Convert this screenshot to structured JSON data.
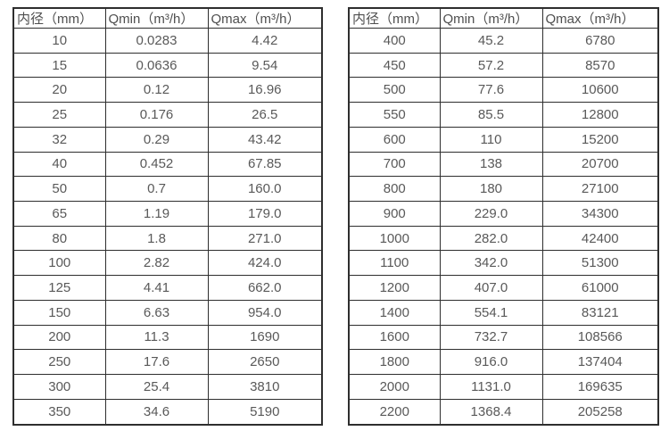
{
  "colors": {
    "background": "#ffffff",
    "border": "#2e2e2e",
    "header_text": "#4f4f4f",
    "cell_text": "#595959"
  },
  "chart_data": [
    {
      "type": "table",
      "title": "",
      "columns": [
        "内径（mm）",
        "Qmin（m³/h）",
        "Qmax（m³/h）"
      ],
      "rows": [
        [
          "10",
          "0.0283",
          "4.42"
        ],
        [
          "15",
          "0.0636",
          "9.54"
        ],
        [
          "20",
          "0.12",
          "16.96"
        ],
        [
          "25",
          "0.176",
          "26.5"
        ],
        [
          "32",
          "0.29",
          "43.42"
        ],
        [
          "40",
          "0.452",
          "67.85"
        ],
        [
          "50",
          "0.7",
          "160.0"
        ],
        [
          "65",
          "1.19",
          "179.0"
        ],
        [
          "80",
          "1.8",
          "271.0"
        ],
        [
          "100",
          "2.82",
          "424.0"
        ],
        [
          "125",
          "4.41",
          "662.0"
        ],
        [
          "150",
          "6.63",
          "954.0"
        ],
        [
          "200",
          "11.3",
          "1690"
        ],
        [
          "250",
          "17.6",
          "2650"
        ],
        [
          "300",
          "25.4",
          "3810"
        ],
        [
          "350",
          "34.6",
          "5190"
        ]
      ]
    },
    {
      "type": "table",
      "title": "",
      "columns": [
        "内径（mm）",
        "Qmin（m³/h）",
        "Qmax（m³/h）"
      ],
      "rows": [
        [
          "400",
          "45.2",
          "6780"
        ],
        [
          "450",
          "57.2",
          "8570"
        ],
        [
          "500",
          "77.6",
          "10600"
        ],
        [
          "550",
          "85.5",
          "12800"
        ],
        [
          "600",
          "110",
          "15200"
        ],
        [
          "700",
          "138",
          "20700"
        ],
        [
          "800",
          "180",
          "27100"
        ],
        [
          "900",
          "229.0",
          "34300"
        ],
        [
          "1000",
          "282.0",
          "42400"
        ],
        [
          "1100",
          "342.0",
          "51300"
        ],
        [
          "1200",
          "407.0",
          "61000"
        ],
        [
          "1400",
          "554.1",
          "83121"
        ],
        [
          "1600",
          "732.7",
          "108566"
        ],
        [
          "1800",
          "916.0",
          "137404"
        ],
        [
          "2000",
          "1131.0",
          "169635"
        ],
        [
          "2200",
          "1368.4",
          "205258"
        ]
      ]
    }
  ]
}
